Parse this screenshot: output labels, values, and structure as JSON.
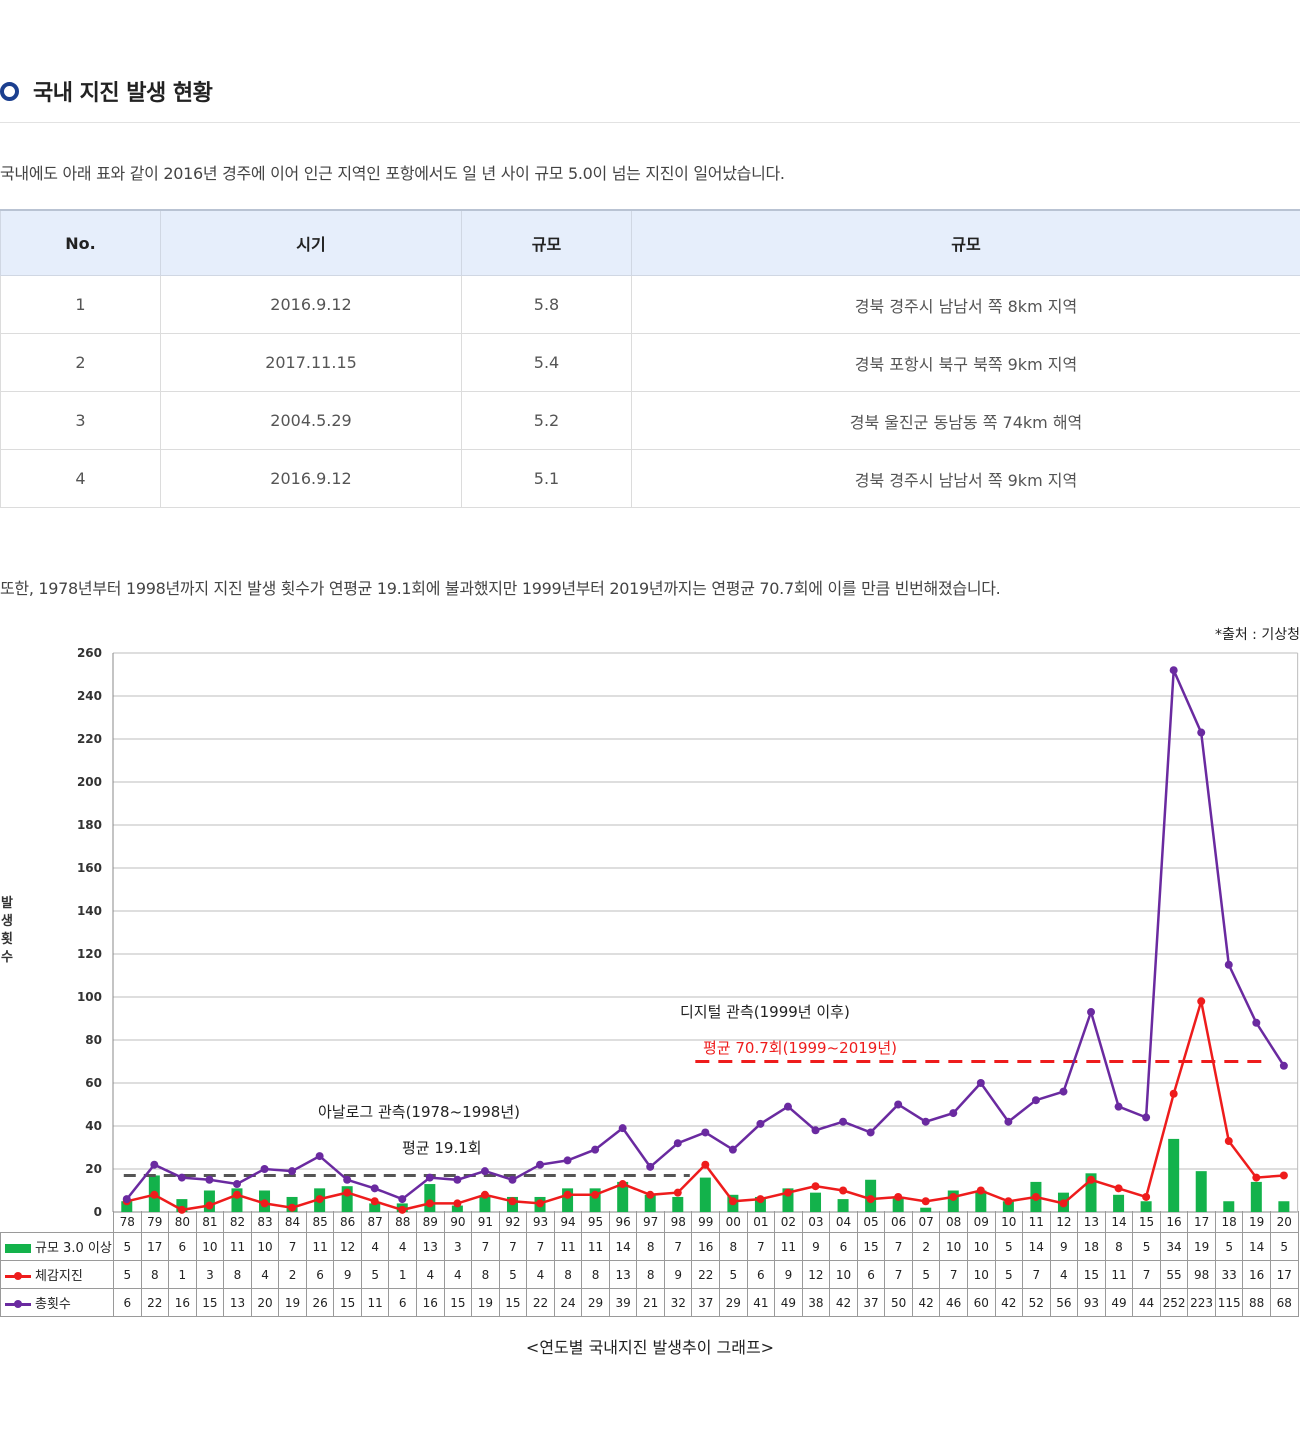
{
  "section": {
    "title": "국내 지진 발생 현황"
  },
  "intro": "국내에도 아래 표와 같이 2016년 경주에 이어 인근 지역인 포항에서도 일 년 사이 규모 5.0이 넘는 지진이 일어났습니다.",
  "quake_table": {
    "headers": [
      "No.",
      "시기",
      "규모",
      "규모"
    ],
    "rows": [
      [
        "1",
        "2016.9.12",
        "5.8",
        "경북 경주시 남남서 쪽 8km 지역"
      ],
      [
        "2",
        "2017.11.15",
        "5.4",
        "경북 포항시 북구 북쪽 9km 지역"
      ],
      [
        "3",
        "2004.5.29",
        "5.2",
        "경북 울진군 동남동 쪽 74km 해역"
      ],
      [
        "4",
        "2016.9.12",
        "5.1",
        "경북 경주시 남남서 쪽 9km 지역"
      ]
    ]
  },
  "para2": "또한, 1978년부터 1998년까지 지진 발생 횟수가 연평균 19.1회에 불과했지만 1999년부터 2019년까지는 연평균 70.7회에 이를 만큼 빈번해졌습니다.",
  "source": "*출처 : 기상청",
  "caption": "<연도별 국내지진 발생추이 그래프>",
  "colors": {
    "bar": "#13b24b",
    "felt": "#ee1c1c",
    "total": "#6a2aa0",
    "avg_analog": "#555555",
    "avg_digital": "#ee1c1c",
    "bullet": "#1b3f8f"
  },
  "chart_data": {
    "type": "bar",
    "ylabel": "발생횟수",
    "ylim": [
      0,
      260
    ],
    "yticks": [
      0,
      20,
      40,
      60,
      80,
      100,
      120,
      140,
      160,
      180,
      200,
      220,
      240,
      260
    ],
    "grid": true,
    "categories": [
      "78",
      "79",
      "80",
      "81",
      "82",
      "83",
      "84",
      "85",
      "86",
      "87",
      "88",
      "89",
      "90",
      "91",
      "92",
      "93",
      "94",
      "95",
      "96",
      "97",
      "98",
      "99",
      "00",
      "01",
      "02",
      "03",
      "04",
      "05",
      "06",
      "07",
      "08",
      "09",
      "10",
      "11",
      "12",
      "13",
      "14",
      "15",
      "16",
      "17",
      "18",
      "19",
      "20"
    ],
    "series": [
      {
        "name": "규모 3.0 이상",
        "kind": "bar",
        "values": [
          5,
          17,
          6,
          10,
          11,
          10,
          7,
          11,
          12,
          4,
          4,
          13,
          3,
          7,
          7,
          7,
          11,
          11,
          14,
          8,
          7,
          16,
          8,
          7,
          11,
          9,
          6,
          15,
          7,
          2,
          10,
          10,
          5,
          14,
          9,
          18,
          8,
          5,
          34,
          19,
          5,
          14,
          5
        ]
      },
      {
        "name": "체감지진",
        "kind": "line",
        "values": [
          5,
          8,
          1,
          3,
          8,
          4,
          2,
          6,
          9,
          5,
          1,
          4,
          4,
          8,
          5,
          4,
          8,
          8,
          13,
          8,
          9,
          22,
          5,
          6,
          9,
          12,
          10,
          6,
          7,
          5,
          7,
          10,
          5,
          7,
          4,
          15,
          11,
          7,
          55,
          98,
          33,
          16,
          17
        ]
      },
      {
        "name": "총횟수",
        "kind": "line",
        "values": [
          6,
          22,
          16,
          15,
          13,
          20,
          19,
          26,
          15,
          11,
          6,
          16,
          15,
          19,
          15,
          22,
          24,
          29,
          39,
          21,
          32,
          37,
          29,
          41,
          49,
          38,
          42,
          37,
          50,
          42,
          46,
          60,
          42,
          52,
          56,
          93,
          49,
          44,
          252,
          223,
          115,
          88,
          68
        ]
      }
    ],
    "annotations": {
      "analog_label": "아날로그 관측(1978~1998년)",
      "analog_avg_label": "평균 19.1회",
      "analog_avg": 17,
      "digital_label": "디지털 관측(1999년 이후)",
      "digital_avg_label": "평균 70.7회(1999~2019년)",
      "digital_avg": 70
    }
  }
}
